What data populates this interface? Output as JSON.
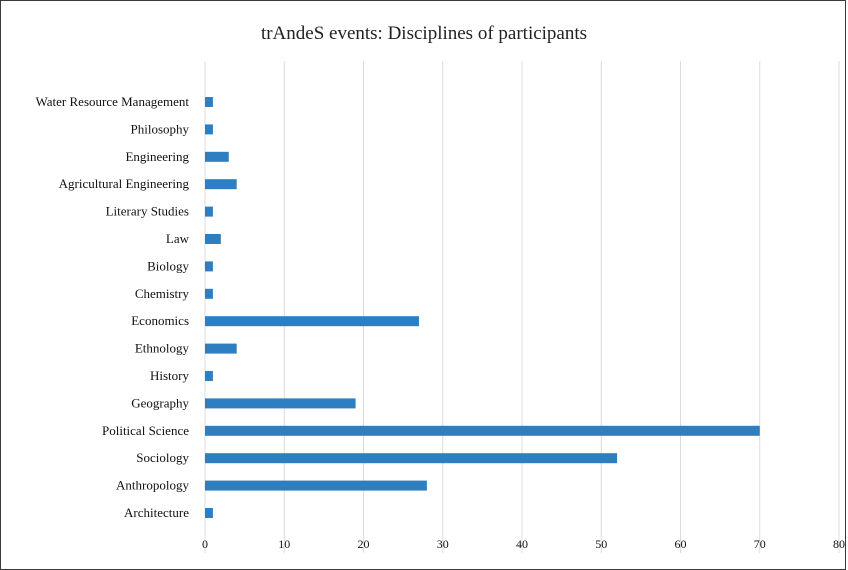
{
  "chart_data": {
    "type": "bar",
    "orientation": "horizontal",
    "title": "trAndeS events: Disciplines of participants",
    "xlabel": "",
    "ylabel": "",
    "xlim": [
      0,
      80
    ],
    "x_ticks": [
      0,
      10,
      20,
      30,
      40,
      50,
      60,
      70,
      80
    ],
    "grid": "vertical",
    "legend": "none",
    "bar_color": "#2e7fc2",
    "categories": [
      "Water Resource Management",
      "Philosophy",
      "Engineering",
      "Agricultural Engineering",
      "Literary Studies",
      "Law",
      "Biology",
      "Chemistry",
      "Economics",
      "Ethnology",
      "History",
      "Geography",
      "Political Science",
      "Sociology",
      "Anthropology",
      "Architecture"
    ],
    "values": [
      1,
      1,
      3,
      4,
      1,
      2,
      1,
      1,
      27,
      4,
      1,
      19,
      70,
      52,
      28,
      1
    ]
  }
}
